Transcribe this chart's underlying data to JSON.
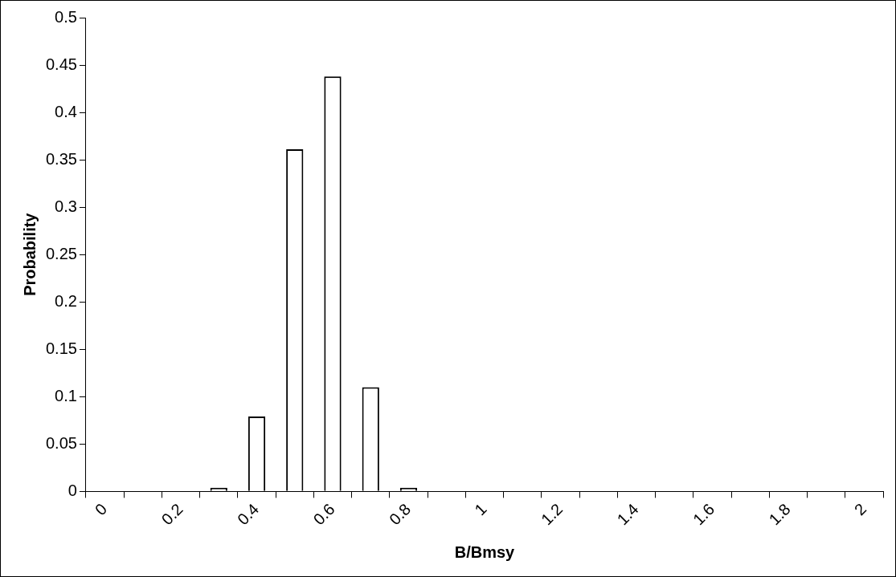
{
  "chart_data": {
    "type": "bar",
    "xlabel": "B/Bmsy",
    "ylabel": "Probability",
    "categories": [
      "0",
      null,
      "0.2",
      null,
      "0.4",
      null,
      "0.6",
      null,
      "0.8",
      null,
      "1",
      null,
      "1.2",
      null,
      "1.4",
      null,
      "1.6",
      null,
      "1.8",
      null,
      "2"
    ],
    "values": [
      0,
      0,
      0,
      0.004,
      0.079,
      0.361,
      0.438,
      0.11,
      0.004,
      0,
      0,
      0,
      0,
      0,
      0,
      0,
      0,
      0,
      0,
      0,
      0
    ],
    "color": "#ffffff",
    "ylim": [
      0,
      0.5
    ],
    "yticks": [
      0,
      0.05,
      0.1,
      0.15,
      0.2,
      0.25,
      0.3,
      0.35,
      0.4,
      0.45,
      0.5
    ],
    "grid": false,
    "legend": false
  }
}
